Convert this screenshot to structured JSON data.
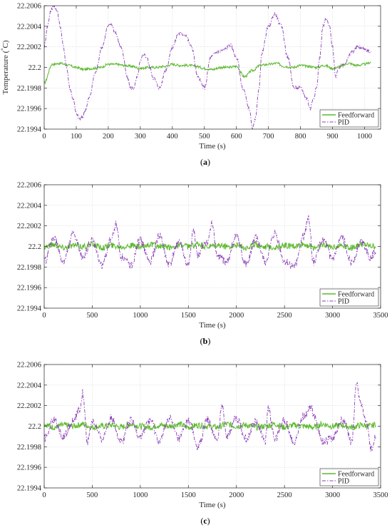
{
  "colors": {
    "feedforward": "#5cb82e",
    "pid": "#8b3fb8",
    "grid": "#d9d9d9",
    "axis": "#262626"
  },
  "chart_data": [
    {
      "type": "line",
      "caption_letter": "a",
      "ylabel_main": "Temperature (",
      "ylabel_unit": "C)",
      "xlabel": "Time (s)",
      "xlim": [
        0,
        1050
      ],
      "ylim": [
        22.1994,
        22.2006
      ],
      "xticks": [
        0,
        100,
        200,
        300,
        400,
        500,
        600,
        700,
        800,
        900,
        1000
      ],
      "yticks": [
        "22.1994",
        "22.1996",
        "22.1998",
        "22.2",
        "22.2002",
        "22.2004",
        "22.2006"
      ],
      "grid": true,
      "legend_placement": "bottom-right",
      "series": [
        {
          "name": "Feedforward",
          "style": "solid",
          "color": "#5cb82e",
          "x": [
            0,
            25,
            50,
            75,
            100,
            125,
            150,
            175,
            200,
            225,
            250,
            275,
            300,
            325,
            350,
            375,
            400,
            425,
            450,
            475,
            500,
            525,
            550,
            575,
            600,
            625,
            650,
            675,
            700,
            725,
            750,
            775,
            800,
            825,
            850,
            875,
            900,
            925,
            950,
            975,
            1000,
            1020
          ],
          "y": [
            22.19985,
            22.20003,
            22.20004,
            22.20002,
            22.2,
            22.19998,
            22.19999,
            22.2,
            22.20003,
            22.20003,
            22.20002,
            22.20001,
            22.19999,
            22.2,
            22.2,
            22.20001,
            22.20003,
            22.20002,
            22.20002,
            22.20001,
            22.19999,
            22.19998,
            22.2,
            22.2,
            22.20001,
            22.19991,
            22.19997,
            22.20002,
            22.20003,
            22.20004,
            22.20001,
            22.2,
            22.20002,
            22.20001,
            22.2,
            22.20002,
            22.19999,
            22.20001,
            22.20004,
            22.20002,
            22.20003,
            22.20005
          ]
        },
        {
          "name": "PID",
          "style": "dashdot",
          "color": "#8b3fb8",
          "x": [
            0,
            10,
            20,
            30,
            40,
            50,
            60,
            70,
            80,
            90,
            100,
            110,
            120,
            130,
            140,
            160,
            180,
            200,
            210,
            220,
            240,
            260,
            270,
            280,
            290,
            300,
            310,
            320,
            330,
            340,
            360,
            380,
            400,
            420,
            440,
            460,
            480,
            500,
            520,
            540,
            560,
            580,
            600,
            620,
            640,
            650,
            660,
            670,
            680,
            700,
            720,
            740,
            760,
            780,
            800,
            820,
            830,
            840,
            850,
            860,
            870,
            880,
            890,
            900,
            910,
            920,
            940,
            960,
            980,
            1000,
            1020
          ],
          "y": [
            22.2002,
            22.2004,
            22.20055,
            22.2006,
            22.20055,
            22.2004,
            22.2002,
            22.2,
            22.1998,
            22.1997,
            22.19955,
            22.1995,
            22.19952,
            22.1996,
            22.1997,
            22.19995,
            22.2002,
            22.2004,
            22.20042,
            22.20035,
            22.2002,
            22.1999,
            22.1998,
            22.1998,
            22.1999,
            22.20005,
            22.20013,
            22.2001,
            22.2,
            22.1999,
            22.1998,
            22.19998,
            22.2002,
            22.20033,
            22.20032,
            22.2002,
            22.1999,
            22.1998,
            22.2001,
            22.20015,
            22.20017,
            22.20022,
            22.2001,
            22.1998,
            22.1996,
            22.1994,
            22.1995,
            22.1998,
            22.20015,
            22.2004,
            22.20052,
            22.2004,
            22.2001,
            22.1998,
            22.1998,
            22.1997,
            22.1996,
            22.1997,
            22.1998,
            22.2001,
            22.2004,
            22.20047,
            22.2004,
            22.2002,
            22.1999,
            22.2,
            22.20005,
            22.20015,
            22.2002,
            22.20018,
            22.20015
          ]
        }
      ]
    },
    {
      "type": "line",
      "caption_letter": "b",
      "ylabel_main": "",
      "ylabel_unit": "",
      "xlabel": "Time (s)",
      "xlim": [
        0,
        3500
      ],
      "ylim": [
        22.1994,
        22.2006
      ],
      "xticks": [
        0,
        500,
        1000,
        1500,
        2000,
        2500,
        3000,
        3500
      ],
      "yticks": [
        "22.1994",
        "22.1996",
        "22.1998",
        "22.2",
        "22.2002",
        "22.2004",
        "22.2006"
      ],
      "grid": true,
      "legend_placement": "bottom-right",
      "series": [
        {
          "name": "Feedforward",
          "style": "solid",
          "color": "#5cb82e",
          "x": [
            0,
            100,
            200,
            300,
            400,
            500,
            600,
            700,
            800,
            900,
            1000,
            1100,
            1200,
            1300,
            1400,
            1500,
            1600,
            1700,
            1800,
            1900,
            2000,
            2100,
            2200,
            2300,
            2400,
            2500,
            2600,
            2700,
            2800,
            2900,
            3000,
            3100,
            3200,
            3300,
            3400,
            3450
          ],
          "y": [
            22.2,
            22.20002,
            22.19999,
            22.20001,
            22.2,
            22.20002,
            22.19999,
            22.20001,
            22.2,
            22.20001,
            22.19999,
            22.20002,
            22.2,
            22.19999,
            22.20001,
            22.2,
            22.20002,
            22.19999,
            22.20001,
            22.2,
            22.20001,
            22.19999,
            22.20002,
            22.2,
            22.19999,
            22.20001,
            22.2,
            22.20002,
            22.19999,
            22.20001,
            22.2,
            22.20001,
            22.19999,
            22.20002,
            22.2,
            22.2
          ]
        },
        {
          "name": "PID",
          "style": "dashdot",
          "color": "#8b3fb8",
          "x": [
            0,
            100,
            200,
            300,
            400,
            500,
            600,
            700,
            750,
            800,
            900,
            1000,
            1100,
            1200,
            1300,
            1400,
            1500,
            1550,
            1600,
            1700,
            1750,
            1800,
            1900,
            2000,
            2100,
            2200,
            2300,
            2400,
            2500,
            2600,
            2700,
            2750,
            2800,
            2900,
            3000,
            3100,
            3200,
            3300,
            3400,
            3450
          ],
          "y": [
            22.19985,
            22.20008,
            22.19985,
            22.20012,
            22.1999,
            22.20005,
            22.19982,
            22.20008,
            22.20022,
            22.1999,
            22.19982,
            22.20006,
            22.19985,
            22.2001,
            22.19982,
            22.20005,
            22.1998,
            22.20015,
            22.19992,
            22.20005,
            22.20022,
            22.1999,
            22.19985,
            22.2001,
            22.19982,
            22.20008,
            22.19985,
            22.20012,
            22.19985,
            22.1998,
            22.2001,
            22.20028,
            22.19985,
            22.20006,
            22.19988,
            22.20008,
            22.19985,
            22.20005,
            22.1999,
            22.19995
          ]
        }
      ]
    },
    {
      "type": "line",
      "caption_letter": "c",
      "ylabel_main": "",
      "ylabel_unit": "",
      "xlabel": "Time (s)",
      "xlim": [
        0,
        3500
      ],
      "ylim": [
        22.1994,
        22.2006
      ],
      "xticks": [
        0,
        500,
        1000,
        1500,
        2000,
        2500,
        3000,
        3500
      ],
      "yticks": [
        "22.1994",
        "22.1996",
        "22.1998",
        "22.2",
        "22.2002",
        "22.2004",
        "22.2006"
      ],
      "grid": true,
      "legend_placement": "bottom-right",
      "series": [
        {
          "name": "Feedforward",
          "style": "solid",
          "color": "#5cb82e",
          "x": [
            0,
            100,
            200,
            300,
            400,
            500,
            600,
            700,
            800,
            900,
            1000,
            1100,
            1200,
            1300,
            1400,
            1500,
            1600,
            1700,
            1800,
            1900,
            2000,
            2100,
            2200,
            2300,
            2400,
            2500,
            2600,
            2700,
            2800,
            2900,
            3000,
            3100,
            3200,
            3300,
            3400,
            3450
          ],
          "y": [
            22.20002,
            22.19999,
            22.20001,
            22.2,
            22.20002,
            22.19999,
            22.2,
            22.20001,
            22.19999,
            22.20002,
            22.2,
            22.19999,
            22.20001,
            22.2,
            22.20002,
            22.19999,
            22.20001,
            22.2,
            22.19999,
            22.20002,
            22.2,
            22.20001,
            22.19999,
            22.2,
            22.20002,
            22.19999,
            22.20001,
            22.2,
            22.19999,
            22.20002,
            22.2,
            22.20001,
            22.19999,
            22.20001,
            22.2,
            22.20002
          ]
        },
        {
          "name": "PID",
          "style": "dashdot",
          "color": "#8b3fb8",
          "x": [
            0,
            100,
            200,
            300,
            380,
            400,
            450,
            500,
            600,
            700,
            800,
            900,
            1000,
            1100,
            1200,
            1300,
            1400,
            1500,
            1600,
            1700,
            1800,
            1850,
            1900,
            2000,
            2100,
            2200,
            2300,
            2330,
            2400,
            2500,
            2600,
            2700,
            2780,
            2800,
            2900,
            3000,
            3100,
            3200,
            3250,
            3300,
            3350,
            3400,
            3450
          ],
          "y": [
            22.19988,
            22.20006,
            22.1999,
            22.20005,
            22.20018,
            22.20032,
            22.19985,
            22.20005,
            22.19988,
            22.20008,
            22.19985,
            22.20005,
            22.1999,
            22.20006,
            22.19985,
            22.20008,
            22.19988,
            22.20005,
            22.1998,
            22.20006,
            22.19985,
            22.20022,
            22.1999,
            22.20008,
            22.19988,
            22.20005,
            22.19985,
            22.20018,
            22.19988,
            22.20006,
            22.19985,
            22.2001,
            22.20018,
            22.20012,
            22.19985,
            22.19988,
            22.20006,
            22.19985,
            22.20042,
            22.2002,
            22.20005,
            22.19978,
            22.19992
          ]
        }
      ]
    }
  ]
}
